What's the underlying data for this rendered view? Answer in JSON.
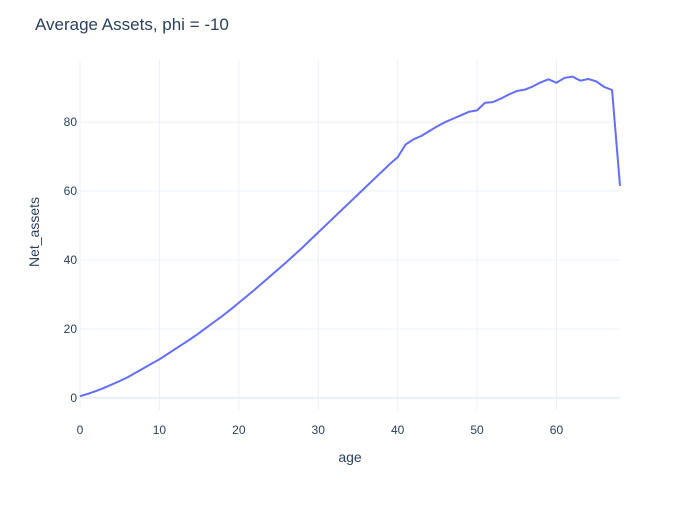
{
  "chart_data": {
    "type": "line",
    "title": "Average Assets, phi = -10",
    "xlabel": "age",
    "ylabel": "Net_assets",
    "xlim": [
      0,
      68
    ],
    "ylim": [
      -3.5,
      98
    ],
    "x_ticks": [
      0,
      10,
      20,
      30,
      40,
      50,
      60
    ],
    "y_ticks": [
      0,
      20,
      40,
      60,
      80
    ],
    "grid": true,
    "legend": "none",
    "colors": {
      "line": "#636efa",
      "grid": "#ebf0f8",
      "zeroline": "#ebf0f8",
      "text": "#2a3f5f"
    },
    "series": [
      {
        "x": [
          0,
          1,
          2,
          3,
          4,
          5,
          6,
          7,
          8,
          9,
          10,
          11,
          12,
          13,
          14,
          15,
          16,
          17,
          18,
          19,
          20,
          21,
          22,
          23,
          24,
          25,
          26,
          27,
          28,
          29,
          30,
          31,
          32,
          33,
          34,
          35,
          36,
          37,
          38,
          39,
          40,
          41,
          42,
          43,
          44,
          45,
          46,
          47,
          48,
          49,
          50,
          51,
          52,
          53,
          54,
          55,
          56,
          57,
          58,
          59,
          60,
          61,
          62,
          63,
          64,
          65,
          66,
          67,
          68
        ],
        "y": [
          0.5,
          1.2,
          2.0,
          2.9,
          3.9,
          4.9,
          6.0,
          7.3,
          8.6,
          9.9,
          11.2,
          12.7,
          14.2,
          15.7,
          17.2,
          18.8,
          20.5,
          22.2,
          23.9,
          25.7,
          27.6,
          29.5,
          31.4,
          33.4,
          35.4,
          37.4,
          39.4,
          41.5,
          43.6,
          45.8,
          48.0,
          50.2,
          52.4,
          54.6,
          56.8,
          59.0,
          61.2,
          63.4,
          65.6,
          67.8,
          69.8,
          73.5,
          75.0,
          76.0,
          77.4,
          78.8,
          80.0,
          81.0,
          82.0,
          83.0,
          83.4,
          85.6,
          85.8,
          86.8,
          88.0,
          89.0,
          89.4,
          90.3,
          91.5,
          92.4,
          91.4,
          92.8,
          93.2,
          92.0,
          92.5,
          91.8,
          90.2,
          89.3,
          61.5
        ]
      }
    ]
  }
}
